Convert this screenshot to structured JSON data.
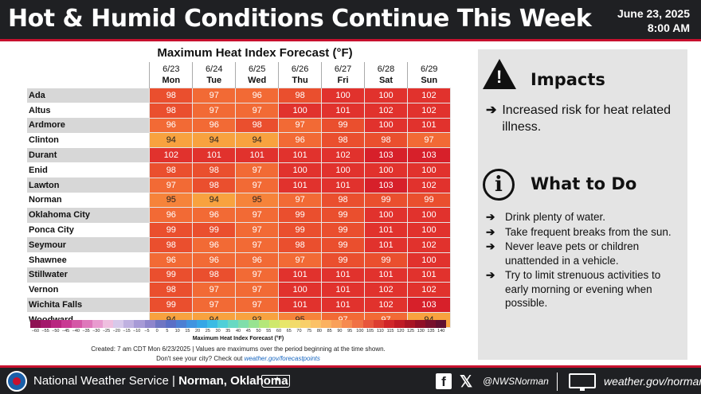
{
  "header": {
    "title": "Hot & Humid Conditions Continue This Week",
    "date": "June 23, 2025",
    "time": "8:00 AM"
  },
  "forecast": {
    "title": "Maximum Heat Index Forecast (°F)",
    "days": [
      {
        "date": "6/23",
        "dow": "Mon"
      },
      {
        "date": "6/24",
        "dow": "Tue"
      },
      {
        "date": "6/25",
        "dow": "Wed"
      },
      {
        "date": "6/26",
        "dow": "Thu"
      },
      {
        "date": "6/27",
        "dow": "Fri"
      },
      {
        "date": "6/28",
        "dow": "Sat"
      },
      {
        "date": "6/29",
        "dow": "Sun"
      }
    ],
    "rows": [
      {
        "city": "Ada",
        "values": [
          98,
          97,
          96,
          98,
          100,
          100,
          102
        ]
      },
      {
        "city": "Altus",
        "values": [
          98,
          97,
          97,
          100,
          101,
          102,
          102
        ]
      },
      {
        "city": "Ardmore",
        "values": [
          96,
          96,
          98,
          97,
          99,
          100,
          101
        ]
      },
      {
        "city": "Clinton",
        "values": [
          94,
          94,
          94,
          96,
          98,
          98,
          97
        ]
      },
      {
        "city": "Durant",
        "values": [
          102,
          101,
          101,
          101,
          102,
          103,
          103
        ]
      },
      {
        "city": "Enid",
        "values": [
          98,
          98,
          97,
          100,
          100,
          100,
          100
        ]
      },
      {
        "city": "Lawton",
        "values": [
          97,
          98,
          97,
          101,
          101,
          103,
          102
        ]
      },
      {
        "city": "Norman",
        "values": [
          95,
          94,
          95,
          97,
          98,
          99,
          99
        ]
      },
      {
        "city": "Oklahoma City",
        "values": [
          96,
          96,
          97,
          99,
          99,
          100,
          100
        ]
      },
      {
        "city": "Ponca City",
        "values": [
          99,
          99,
          97,
          99,
          99,
          101,
          100
        ]
      },
      {
        "city": "Seymour",
        "values": [
          98,
          96,
          97,
          98,
          99,
          101,
          102
        ]
      },
      {
        "city": "Shawnee",
        "values": [
          96,
          96,
          96,
          97,
          99,
          99,
          100
        ]
      },
      {
        "city": "Stillwater",
        "values": [
          99,
          98,
          97,
          101,
          101,
          101,
          101
        ]
      },
      {
        "city": "Vernon",
        "values": [
          98,
          97,
          97,
          100,
          101,
          102,
          102
        ]
      },
      {
        "city": "Wichita Falls",
        "values": [
          99,
          97,
          97,
          101,
          101,
          102,
          103
        ]
      },
      {
        "city": "Woodward",
        "values": [
          94,
          94,
          93,
          95,
          97,
          97,
          94
        ]
      }
    ],
    "scale_ticks": [
      "−60",
      "−55",
      "−50",
      "−45",
      "−40",
      "−35",
      "−30",
      "−25",
      "−20",
      "−15",
      "−10",
      "−5",
      "0",
      "5",
      "10",
      "15",
      "20",
      "25",
      "30",
      "35",
      "40",
      "45",
      "50",
      "55",
      "60",
      "65",
      "70",
      "75",
      "80",
      "85",
      "90",
      "95",
      "100",
      "105",
      "110",
      "115",
      "120",
      "125",
      "130",
      "135",
      "140"
    ],
    "scale_colors": [
      "#8e1253",
      "#a3196b",
      "#b8257f",
      "#c93a93",
      "#d457a6",
      "#de78bb",
      "#e89bcf",
      "#efbfdf",
      "#d7c9ea",
      "#bfb1e0",
      "#a79ad6",
      "#8f86cc",
      "#6f76c3",
      "#5a6fc6",
      "#4c7fd3",
      "#3f93e0",
      "#35a6e6",
      "#3bbbe4",
      "#4fcfd8",
      "#67d9c3",
      "#7fdeab",
      "#98e391",
      "#b4e77a",
      "#cfe86c",
      "#e7e66a",
      "#f2db6a",
      "#f8cf69",
      "#fbc166",
      "#fbb160",
      "#f9a059",
      "#f68a4f",
      "#f07145",
      "#e7553b",
      "#dc3d31",
      "#d02629",
      "#bf1a24",
      "#a81423",
      "#900f26",
      "#78102c",
      "#611030"
    ],
    "scale_caption": "Maximum Heat Index Forecast (°F)",
    "created": "Created: 7 am CDT Mon 6/23/2025  |  Values are maximums over the period beginning at the time shown.",
    "see_city_prefix": "Don't see your city? Check out",
    "see_city_link": "weather.gov/forecastpoints"
  },
  "impacts": {
    "title": "Impacts",
    "icon": "warning-triangle-icon",
    "items": [
      "Increased risk for heat related illness."
    ]
  },
  "what_to_do": {
    "title": "What to Do",
    "icon": "info-circle-icon",
    "items": [
      "Drink plenty of water.",
      "Take frequent breaks from the sun.",
      "Never leave pets or children unattended in a vehicle.",
      "Try to limit strenuous activities to early morning or evening when possible."
    ]
  },
  "footer": {
    "agency": "National Weather Service",
    "separator": "|",
    "office": "Norman, Oklahoma",
    "fb_glyph": "f",
    "x_glyph": "𝕏",
    "handle": "@NWSNorman",
    "website": "weather.gov/norman",
    "arrow_glyph": "➔",
    "warn_glyph": "!",
    "info_glyph": "i",
    "star_glyph": "★"
  }
}
